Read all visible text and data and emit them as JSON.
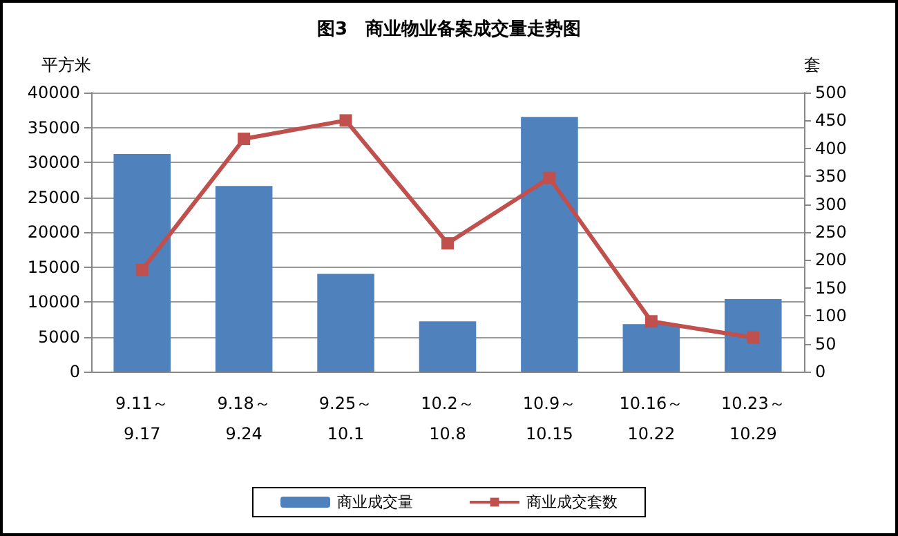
{
  "chart_data": {
    "type": "bar",
    "title": "图3　商业物业备案成交量走势图",
    "ylabel": "平方米",
    "y2label": "套",
    "categories": [
      "9.11～\n9.17",
      "9.18～\n9.24",
      "9.25～\n10.1",
      "10.2～\n10.8",
      "10.9～\n10.15",
      "10.16～\n10.22",
      "10.23～\n10.29"
    ],
    "series": [
      {
        "name": "商业成交量",
        "color": "#4f81bd",
        "values": [
          31200,
          26600,
          14000,
          7200,
          36500,
          6800,
          10400
        ]
      },
      {
        "name": "商业成交套数",
        "type": "line",
        "axis": "y2",
        "color": "#c0504d",
        "marker": "square",
        "values": [
          182,
          417,
          450,
          230,
          347,
          90,
          61
        ]
      }
    ],
    "ylim": [
      0,
      40000
    ],
    "yticks": [
      0,
      5000,
      10000,
      15000,
      20000,
      25000,
      30000,
      35000,
      40000
    ],
    "y2lim": [
      0,
      500
    ],
    "y2ticks": [
      0,
      50,
      100,
      150,
      200,
      250,
      300,
      350,
      400,
      450,
      500
    ],
    "grid": "y",
    "legend": "bottom"
  }
}
